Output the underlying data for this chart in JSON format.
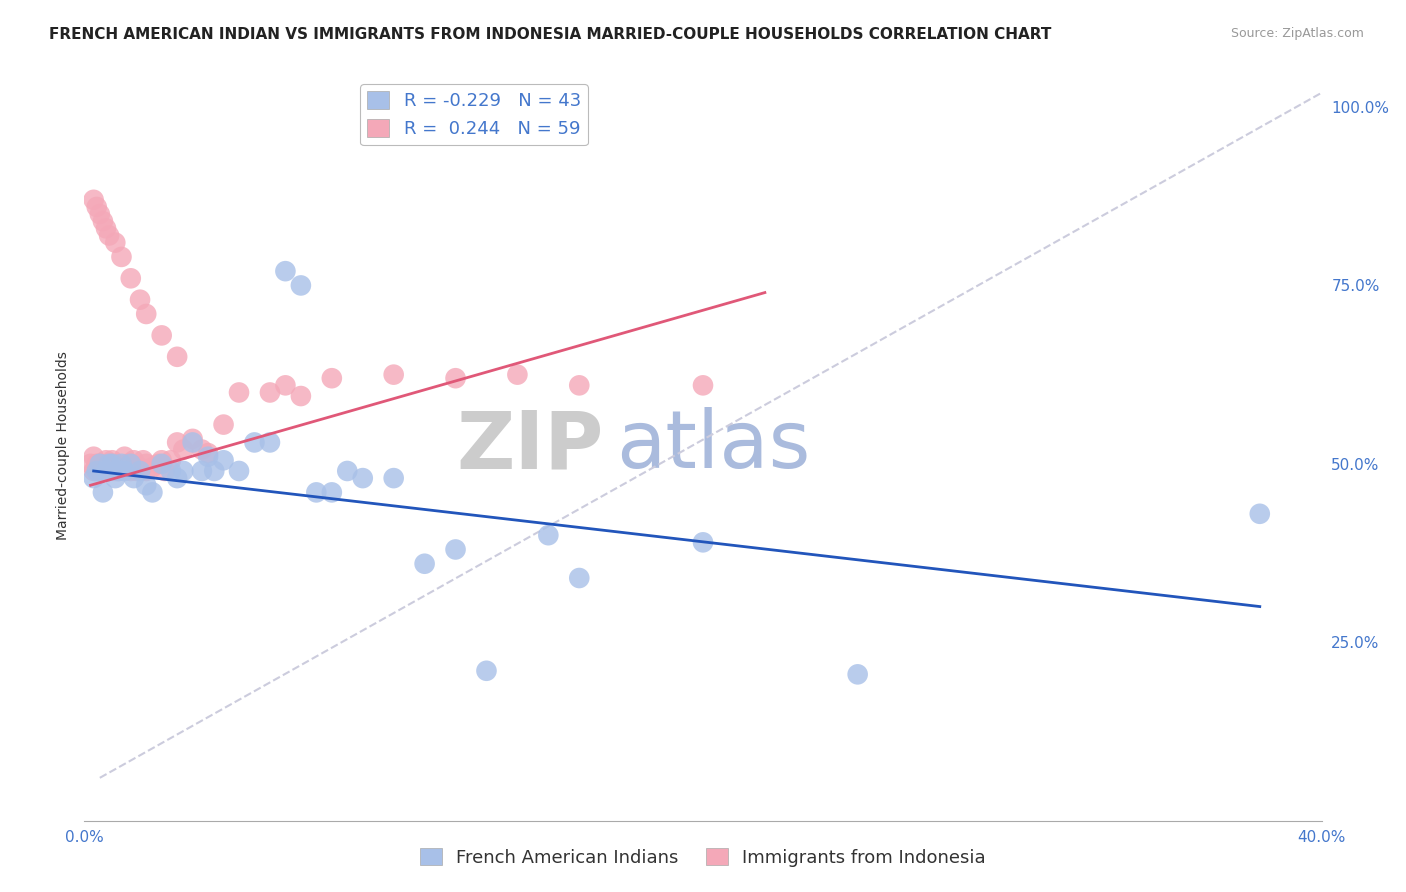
{
  "title": "FRENCH AMERICAN INDIAN VS IMMIGRANTS FROM INDONESIA MARRIED-COUPLE HOUSEHOLDS CORRELATION CHART",
  "source": "Source: ZipAtlas.com",
  "ylabel": "Married-couple Households",
  "xlim": [
    0.0,
    0.4
  ],
  "ylim": [
    0.0,
    1.05
  ],
  "xticks": [
    0.0,
    0.05,
    0.1,
    0.15,
    0.2,
    0.25,
    0.3,
    0.35,
    0.4
  ],
  "yticks_right": [
    0.25,
    0.5,
    0.75,
    1.0
  ],
  "ytick_labels_right": [
    "25.0%",
    "50.0%",
    "75.0%",
    "100.0%"
  ],
  "watermark_zip": "ZIP",
  "watermark_atlas": "atlas",
  "legend_r_blue": "-0.229",
  "legend_n_blue": "43",
  "legend_r_pink": "0.244",
  "legend_n_pink": "59",
  "blue_color": "#A8C0E8",
  "pink_color": "#F4A8B8",
  "blue_line_color": "#2255BB",
  "pink_line_color": "#E05878",
  "dashed_line_color": "#CCCCDD",
  "watermark_zip_color": "#CCCCCC",
  "watermark_atlas_color": "#AABBDD",
  "background_color": "#FFFFFF",
  "grid_color": "#DDDDDD",
  "tick_color": "#4477CC",
  "title_fontsize": 11,
  "source_fontsize": 9,
  "axis_label_fontsize": 10,
  "tick_fontsize": 11,
  "legend_fontsize": 13,
  "watermark_fontsize": 58,
  "blue_scatter_x": [
    0.003,
    0.004,
    0.005,
    0.006,
    0.007,
    0.008,
    0.009,
    0.01,
    0.011,
    0.012,
    0.013,
    0.015,
    0.016,
    0.018,
    0.02,
    0.022,
    0.025,
    0.028,
    0.03,
    0.032,
    0.035,
    0.038,
    0.04,
    0.042,
    0.045,
    0.05,
    0.055,
    0.06,
    0.065,
    0.07,
    0.075,
    0.08,
    0.085,
    0.09,
    0.1,
    0.11,
    0.12,
    0.13,
    0.15,
    0.2,
    0.25,
    0.38,
    0.16
  ],
  "blue_scatter_y": [
    0.48,
    0.49,
    0.5,
    0.46,
    0.49,
    0.5,
    0.5,
    0.48,
    0.49,
    0.5,
    0.49,
    0.5,
    0.48,
    0.49,
    0.47,
    0.46,
    0.5,
    0.49,
    0.48,
    0.49,
    0.53,
    0.49,
    0.51,
    0.49,
    0.505,
    0.49,
    0.53,
    0.53,
    0.77,
    0.75,
    0.46,
    0.46,
    0.49,
    0.48,
    0.48,
    0.36,
    0.38,
    0.21,
    0.4,
    0.39,
    0.205,
    0.43,
    0.34
  ],
  "pink_scatter_x": [
    0.002,
    0.003,
    0.003,
    0.004,
    0.005,
    0.005,
    0.006,
    0.007,
    0.008,
    0.008,
    0.009,
    0.01,
    0.01,
    0.011,
    0.012,
    0.013,
    0.014,
    0.015,
    0.015,
    0.016,
    0.017,
    0.018,
    0.019,
    0.02,
    0.02,
    0.022,
    0.024,
    0.025,
    0.026,
    0.028,
    0.03,
    0.032,
    0.035,
    0.038,
    0.04,
    0.045,
    0.05,
    0.06,
    0.065,
    0.07,
    0.08,
    0.1,
    0.12,
    0.14,
    0.16,
    0.2,
    0.003,
    0.004,
    0.005,
    0.006,
    0.007,
    0.008,
    0.01,
    0.012,
    0.015,
    0.018,
    0.02,
    0.025,
    0.03
  ],
  "pink_scatter_y": [
    0.5,
    0.51,
    0.49,
    0.5,
    0.49,
    0.5,
    0.495,
    0.505,
    0.49,
    0.5,
    0.505,
    0.49,
    0.5,
    0.49,
    0.495,
    0.51,
    0.5,
    0.5,
    0.49,
    0.505,
    0.49,
    0.495,
    0.505,
    0.49,
    0.5,
    0.495,
    0.5,
    0.505,
    0.49,
    0.505,
    0.53,
    0.52,
    0.535,
    0.52,
    0.515,
    0.555,
    0.6,
    0.6,
    0.61,
    0.595,
    0.62,
    0.625,
    0.62,
    0.625,
    0.61,
    0.61,
    0.87,
    0.86,
    0.85,
    0.84,
    0.83,
    0.82,
    0.81,
    0.79,
    0.76,
    0.73,
    0.71,
    0.68,
    0.65
  ],
  "blue_trend_x": [
    0.003,
    0.38
  ],
  "blue_trend_y": [
    0.49,
    0.3
  ],
  "pink_trend_x": [
    0.002,
    0.22
  ],
  "pink_trend_y": [
    0.47,
    0.74
  ],
  "dashed_line_x": [
    0.005,
    0.4
  ],
  "dashed_line_y": [
    0.06,
    1.02
  ],
  "legend_label_blue": "French American Indians",
  "legend_label_pink": "Immigrants from Indonesia"
}
